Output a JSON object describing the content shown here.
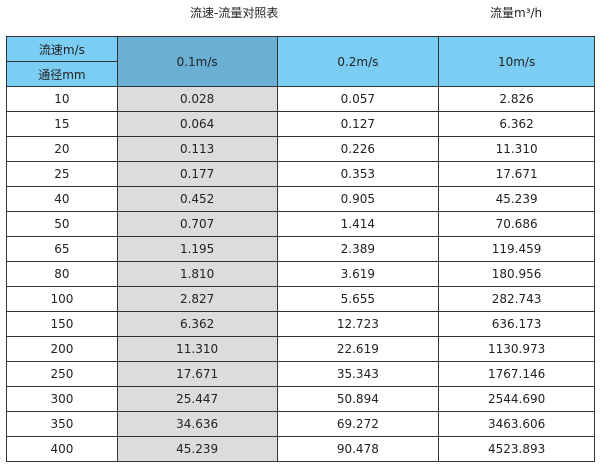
{
  "title": "流速-流量对照表",
  "unit": "流量m³/h",
  "header": {
    "velocity_label": "流速m/s",
    "diameter_label": "通径mm",
    "columns": [
      "0.1m/s",
      "0.2m/s",
      "10m/s"
    ]
  },
  "colors": {
    "header": "#7ccdf4",
    "header_selected": "#6bb0d4",
    "first_col": "#dcdcdc"
  },
  "rows": [
    [
      "10",
      "0.028",
      "0.057",
      "2.826"
    ],
    [
      "15",
      "0.064",
      "0.127",
      "6.362"
    ],
    [
      "20",
      "0.113",
      "0.226",
      "11.310"
    ],
    [
      "25",
      "0.177",
      "0.353",
      "17.671"
    ],
    [
      "40",
      "0.452",
      "0.905",
      "45.239"
    ],
    [
      "50",
      "0.707",
      "1.414",
      "70.686"
    ],
    [
      "65",
      "1.195",
      "2.389",
      "119.459"
    ],
    [
      "80",
      "1.810",
      "3.619",
      "180.956"
    ],
    [
      "100",
      "2.827",
      "5.655",
      "282.743"
    ],
    [
      "150",
      "6.362",
      "12.723",
      "636.173"
    ],
    [
      "200",
      "11.310",
      "22.619",
      "1130.973"
    ],
    [
      "250",
      "17.671",
      "35.343",
      "1767.146"
    ],
    [
      "300",
      "25.447",
      "50.894",
      "2544.690"
    ],
    [
      "350",
      "34.636",
      "69.272",
      "3463.606"
    ],
    [
      "400",
      "45.239",
      "90.478",
      "4523.893"
    ]
  ]
}
